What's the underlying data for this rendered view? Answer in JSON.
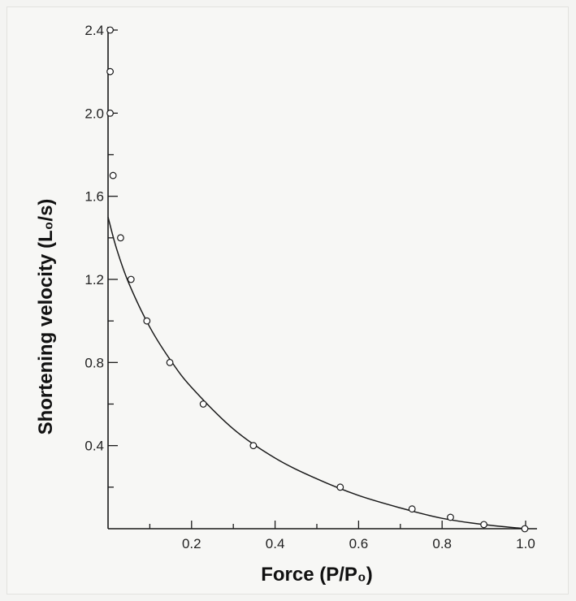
{
  "chart_data": {
    "type": "scatter",
    "xlabel": "Force (P/P₀)",
    "ylabel": "Shortening velocity (L₀/s)",
    "xlim": [
      0,
      1.0
    ],
    "ylim": [
      0,
      2.4
    ],
    "x_ticks": [
      "0.2",
      "0.4",
      "0.6",
      "0.8",
      "1.0"
    ],
    "x_tick_values": [
      0.2,
      0.4,
      0.6,
      0.8,
      1.0
    ],
    "y_ticks": [
      "0.4",
      "0.8",
      "1.2",
      "1.6",
      "2.0",
      "2.4"
    ],
    "y_tick_values": [
      0.4,
      0.8,
      1.2,
      1.6,
      2.0,
      2.4
    ],
    "grid": false,
    "series": [
      {
        "kind": "points",
        "marker": "open-circle",
        "x": [
          0.005,
          0.005,
          0.005,
          0.012,
          0.03,
          0.055,
          0.093,
          0.148,
          0.228,
          0.348,
          0.556,
          0.728,
          0.82,
          0.9,
          0.998
        ],
        "y": [
          2.4,
          2.2,
          2.0,
          1.7,
          1.4,
          1.2,
          1.0,
          0.8,
          0.6,
          0.4,
          0.2,
          0.095,
          0.055,
          0.02,
          0.0
        ]
      },
      {
        "kind": "fitted-curve",
        "x": [
          0.0,
          0.02,
          0.05,
          0.1,
          0.15,
          0.2,
          0.3,
          0.4,
          0.5,
          0.6,
          0.7,
          0.8,
          0.9,
          1.0
        ],
        "y": [
          1.5,
          1.35,
          1.18,
          0.97,
          0.81,
          0.68,
          0.48,
          0.34,
          0.24,
          0.16,
          0.1,
          0.05,
          0.02,
          0.0
        ]
      }
    ],
    "colors": {
      "line": "#1a1a1a",
      "marker_fill": "#ffffff",
      "marker_stroke": "#1a1a1a"
    }
  }
}
